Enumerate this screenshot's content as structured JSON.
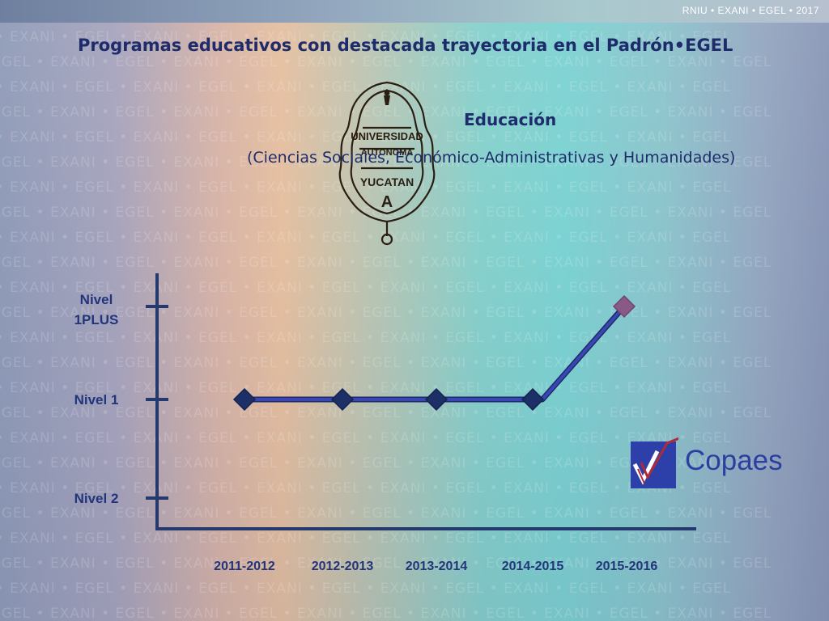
{
  "header": {
    "brand": "RNIU • EXANI • EGEL • 2017"
  },
  "slide": {
    "title": "Programas educativos con destacada trayectoria en el Padrón•EGEL",
    "area": "Educación",
    "area_detail": "(Ciencias Sociales, Económico-Administrativas y Humanidades)"
  },
  "watermark_text": "EGEL • EXANI • EGEL • EXANI • EGEL • EXANI • EGEL • EXANI • EGEL • EXANI • EGEL • EXANI • EGEL",
  "seal": {
    "text_top": "UNIVERSIDAD",
    "text_mid": "AUTONOMA",
    "text_bottom": "YUCATAN",
    "letter": "A"
  },
  "copaes": {
    "label": "Copaes"
  },
  "chart_data": {
    "type": "line",
    "categories": [
      "2011-2012",
      "2012-2013",
      "2013-2014",
      "2014-2015",
      "2015-2016"
    ],
    "y_levels": [
      "Nivel 2",
      "Nivel 1",
      "Nivel\n1PLUS"
    ],
    "y_level_lines": [
      [
        "Nivel 2"
      ],
      [
        "Nivel 1"
      ],
      [
        "Nivel",
        "1PLUS"
      ]
    ],
    "series": [
      {
        "values": [
          1,
          1,
          1,
          1,
          2
        ],
        "point_colors": [
          "#1c2f66",
          "#1c2f66",
          "#1c2f66",
          "#1c2f66",
          "#8a5a86"
        ]
      }
    ],
    "ylim": [
      0,
      2
    ],
    "line_color": "#3a46b4",
    "axis_color": "#243a6e",
    "label_color": "#22357a",
    "grid": false
  }
}
